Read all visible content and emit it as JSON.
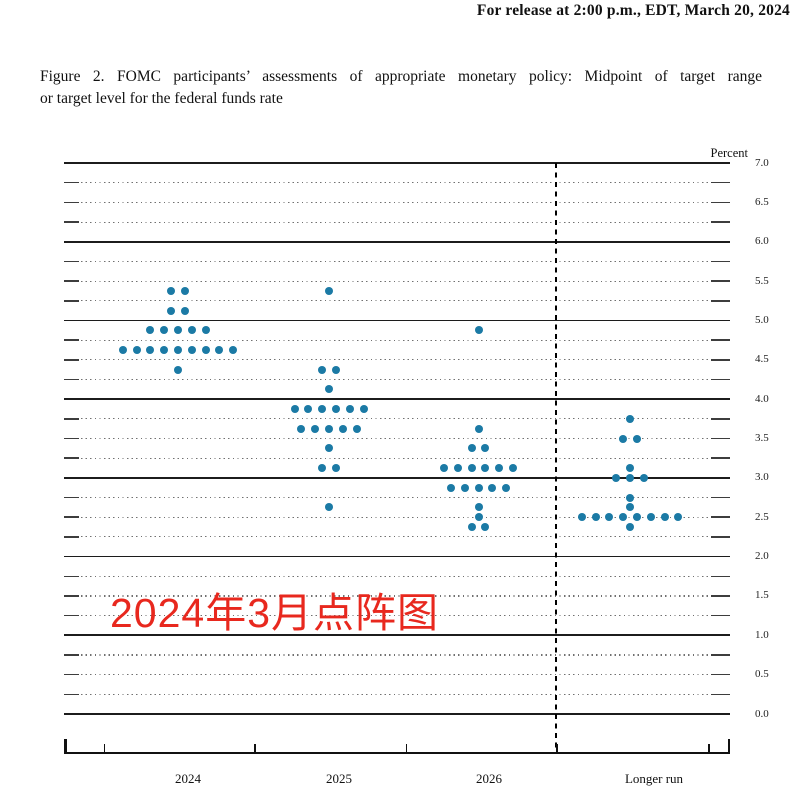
{
  "header": {
    "release_line": "For release at 2:00 p.m., EDT, March 20, 2024"
  },
  "caption": {
    "line1": "Figure 2.  FOMC participants’ assessments of appropriate monetary policy:  Midpoint of target range",
    "line2": "or target level for the federal funds rate"
  },
  "annotation": {
    "text": "2024年3月点阵图",
    "color": "#e8281e"
  },
  "chart_data": {
    "type": "scatter",
    "subtype": "fomc-dot-plot",
    "title": "FOMC participants' assessments of appropriate monetary policy",
    "ylabel": "Percent",
    "ylim": [
      0.0,
      7.0
    ],
    "y_label_step": 0.5,
    "gridline_step": 0.25,
    "grid": true,
    "dot_color": "#1b7aa5",
    "categories": [
      "2024",
      "2025",
      "2026",
      "Longer run"
    ],
    "y_tick_labels": [
      "7.0",
      "6.5",
      "6.0",
      "5.5",
      "5.0",
      "4.5",
      "4.0",
      "3.5",
      "3.0",
      "2.5",
      "2.0",
      "1.5",
      "1.0",
      "0.5",
      "0.0"
    ],
    "series": [
      {
        "category": "2024",
        "dots": [
          {
            "rate": 5.375,
            "count": 2
          },
          {
            "rate": 5.125,
            "count": 2
          },
          {
            "rate": 4.875,
            "count": 5
          },
          {
            "rate": 4.625,
            "count": 9
          },
          {
            "rate": 4.375,
            "count": 1
          }
        ]
      },
      {
        "category": "2025",
        "dots": [
          {
            "rate": 5.375,
            "count": 1
          },
          {
            "rate": 4.375,
            "count": 2
          },
          {
            "rate": 4.125,
            "count": 1
          },
          {
            "rate": 3.875,
            "count": 6
          },
          {
            "rate": 3.625,
            "count": 5
          },
          {
            "rate": 3.375,
            "count": 1
          },
          {
            "rate": 3.125,
            "count": 2
          },
          {
            "rate": 2.625,
            "count": 1
          }
        ]
      },
      {
        "category": "2026",
        "dots": [
          {
            "rate": 4.875,
            "count": 1
          },
          {
            "rate": 3.625,
            "count": 1
          },
          {
            "rate": 3.375,
            "count": 2
          },
          {
            "rate": 3.125,
            "count": 6
          },
          {
            "rate": 2.875,
            "count": 5
          },
          {
            "rate": 2.625,
            "count": 1
          },
          {
            "rate": 2.5,
            "count": 1
          },
          {
            "rate": 2.375,
            "count": 2
          }
        ]
      },
      {
        "category": "Longer run",
        "dots": [
          {
            "rate": 3.75,
            "count": 1
          },
          {
            "rate": 3.5,
            "count": 2
          },
          {
            "rate": 3.125,
            "count": 1
          },
          {
            "rate": 3.0,
            "count": 3
          },
          {
            "rate": 2.75,
            "count": 1
          },
          {
            "rate": 2.625,
            "count": 1
          },
          {
            "rate": 2.5,
            "count": 8
          },
          {
            "rate": 2.375,
            "count": 1
          }
        ]
      }
    ]
  }
}
